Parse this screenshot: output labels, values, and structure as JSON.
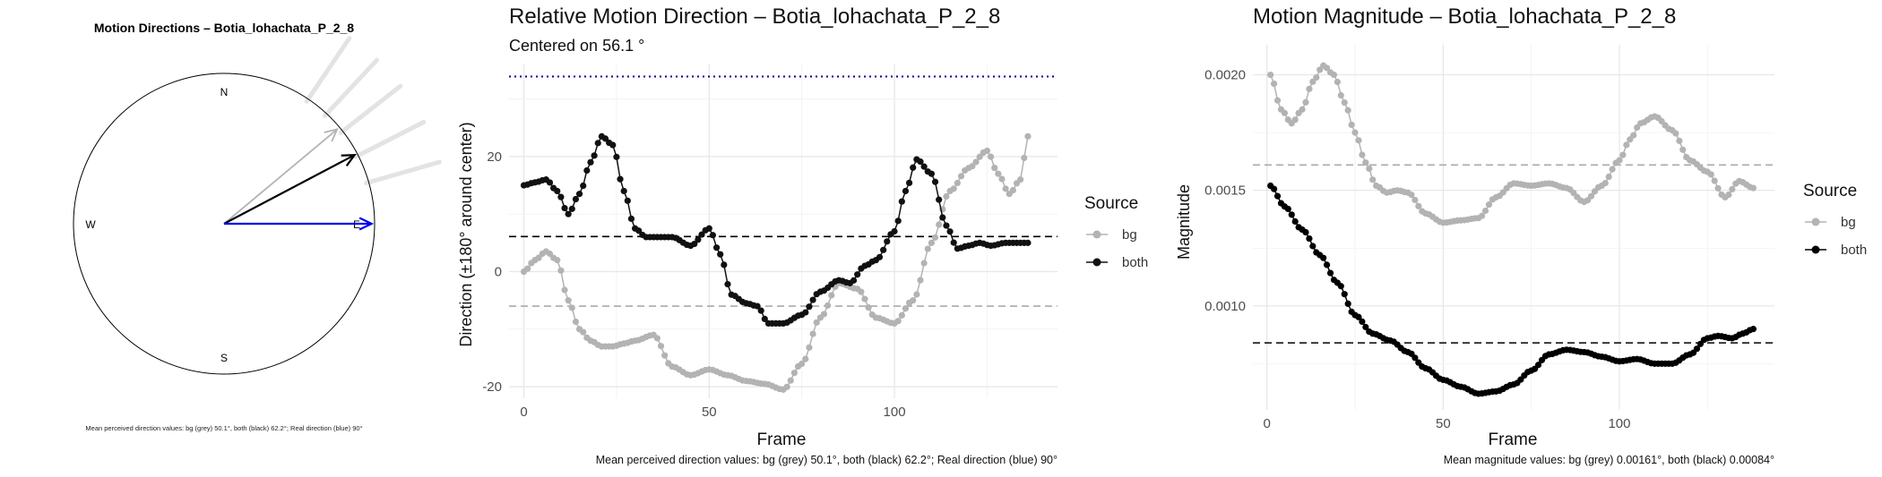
{
  "chart_data": [
    {
      "type": "compass",
      "title": "Motion Directions – Botia_lohachata_P_2_8",
      "cardinals": {
        "north": "N",
        "east": "E",
        "south": "S",
        "west": "W"
      },
      "arrows": [
        {
          "name": "bg",
          "angle_deg": 50.1,
          "color": "#b3b3b3"
        },
        {
          "name": "both",
          "angle_deg": 62.2,
          "color": "#000000"
        },
        {
          "name": "real",
          "angle_deg": 90,
          "color": "#0000ee"
        }
      ],
      "rays_deg": [
        34,
        43,
        52,
        63,
        74
      ],
      "caption": "Mean perceived direction values: bg (grey) 50.1°, both (black) 62.2°; Real direction (blue) 90°"
    },
    {
      "type": "line",
      "title": "Relative Motion Direction – Botia_lohachata_P_2_8",
      "subtitle": "Centered on  56.1 °",
      "xlabel": "Frame",
      "ylabel": "Direction (±180° around center)",
      "xlim": [
        -4,
        144
      ],
      "ylim": [
        -22,
        36
      ],
      "xticks": [
        0,
        50,
        100
      ],
      "yticks": [
        -20,
        0,
        20
      ],
      "legend": {
        "title": "Source",
        "entries": [
          "bg",
          "both"
        ],
        "position": "right"
      },
      "hlines": [
        {
          "y": 33.9,
          "color": "#00008b",
          "style": "dotted"
        },
        {
          "y": 6.1,
          "color": "#000000",
          "style": "dashed"
        },
        {
          "y": -6.0,
          "color": "#aaaaaa",
          "style": "dashed"
        }
      ],
      "series": [
        {
          "name": "bg",
          "color": "#b3b3b3",
          "x": [
            0,
            3,
            6,
            9,
            12,
            15,
            18,
            21,
            24,
            27,
            30,
            35,
            40,
            45,
            50,
            55,
            60,
            65,
            70,
            75,
            80,
            85,
            90,
            95,
            100,
            105,
            110,
            115,
            120,
            125,
            128,
            131,
            134,
            136
          ],
          "y": [
            0,
            2,
            3.5,
            2,
            -5,
            -10,
            -12,
            -13,
            -13,
            -12.5,
            -12,
            -11,
            -16.5,
            -18,
            -17,
            -18,
            -19,
            -19.5,
            -20.5,
            -16,
            -8,
            -2,
            -3,
            -8,
            -9,
            -5,
            5,
            14,
            18,
            21,
            17,
            13.5,
            16,
            23.5
          ]
        },
        {
          "name": "both",
          "color": "#111111",
          "x": [
            0,
            3,
            6,
            9,
            12,
            15,
            18,
            21,
            24,
            27,
            30,
            33,
            36,
            40,
            45,
            50,
            53,
            56,
            60,
            63,
            66,
            70,
            75,
            80,
            85,
            88,
            92,
            95,
            100,
            103,
            106,
            110,
            114,
            117,
            120,
            123,
            126,
            130,
            133,
            136
          ],
          "y": [
            15,
            15.5,
            16,
            14,
            10,
            13.5,
            19,
            23.5,
            22,
            14,
            7.5,
            6,
            6,
            6,
            4.5,
            7.5,
            3,
            -4,
            -5.5,
            -6,
            -9,
            -9,
            -7.5,
            -3.5,
            -1.5,
            -2,
            1,
            2,
            7,
            14,
            19.5,
            17,
            8,
            4,
            4.5,
            5,
            4.5,
            5,
            5,
            5
          ]
        }
      ],
      "caption": "Mean perceived direction values: bg (grey) 50.1°, both (black) 62.2°; Real direction (blue) 90°"
    },
    {
      "type": "line",
      "title": "Motion Magnitude – Botia_lohachata_P_2_8",
      "xlabel": "Frame",
      "ylabel": "Magnitude",
      "xlim": [
        -4,
        144
      ],
      "ylim": [
        0.00055,
        0.00213
      ],
      "xticks": [
        0,
        50,
        100
      ],
      "yticks": [
        0.001,
        0.0015,
        0.002
      ],
      "ytick_labels": [
        "0.0010",
        "0.0015",
        "0.0020"
      ],
      "legend": {
        "title": "Source",
        "entries": [
          "bg",
          "both"
        ],
        "position": "right"
      },
      "hlines": [
        {
          "y": 0.00161,
          "color": "#aaaaaa",
          "style": "dashed"
        },
        {
          "y": 0.00084,
          "color": "#000000",
          "style": "dashed"
        }
      ],
      "series": [
        {
          "name": "bg",
          "color": "#b3b3b3",
          "x": [
            1,
            4,
            7,
            10,
            13,
            16,
            19,
            22,
            25,
            28,
            31,
            34,
            37,
            40,
            45,
            50,
            55,
            60,
            65,
            70,
            75,
            80,
            85,
            90,
            95,
            100,
            103,
            106,
            110,
            115,
            120,
            125,
            130,
            134,
            138
          ],
          "y": [
            0.002,
            0.00185,
            0.00179,
            0.00185,
            0.00197,
            0.00204,
            0.002,
            0.00188,
            0.00175,
            0.00162,
            0.00152,
            0.00149,
            0.0015,
            0.00149,
            0.0014,
            0.00136,
            0.00137,
            0.00138,
            0.00147,
            0.00153,
            0.00152,
            0.00153,
            0.00151,
            0.00145,
            0.00152,
            0.00163,
            0.00172,
            0.00179,
            0.00182,
            0.00176,
            0.00163,
            0.00158,
            0.00147,
            0.00154,
            0.00151
          ]
        },
        {
          "name": "both",
          "color": "#000000",
          "x": [
            1,
            5,
            10,
            15,
            20,
            25,
            30,
            35,
            40,
            45,
            50,
            55,
            60,
            65,
            70,
            75,
            80,
            85,
            90,
            95,
            100,
            105,
            110,
            115,
            120,
            125,
            128,
            132,
            135,
            138
          ],
          "y": [
            0.00152,
            0.00143,
            0.00133,
            0.00122,
            0.0011,
            0.00096,
            0.00088,
            0.00085,
            0.0008,
            0.00073,
            0.00068,
            0.00065,
            0.00062,
            0.00063,
            0.00066,
            0.00072,
            0.00079,
            0.00081,
            0.0008,
            0.00078,
            0.00076,
            0.00077,
            0.00075,
            0.00075,
            0.00079,
            0.00086,
            0.00087,
            0.00086,
            0.00088,
            0.0009
          ]
        }
      ],
      "caption": "Mean magnitude values: bg (grey) 0.00161°, both (black) 0.00084°"
    }
  ]
}
